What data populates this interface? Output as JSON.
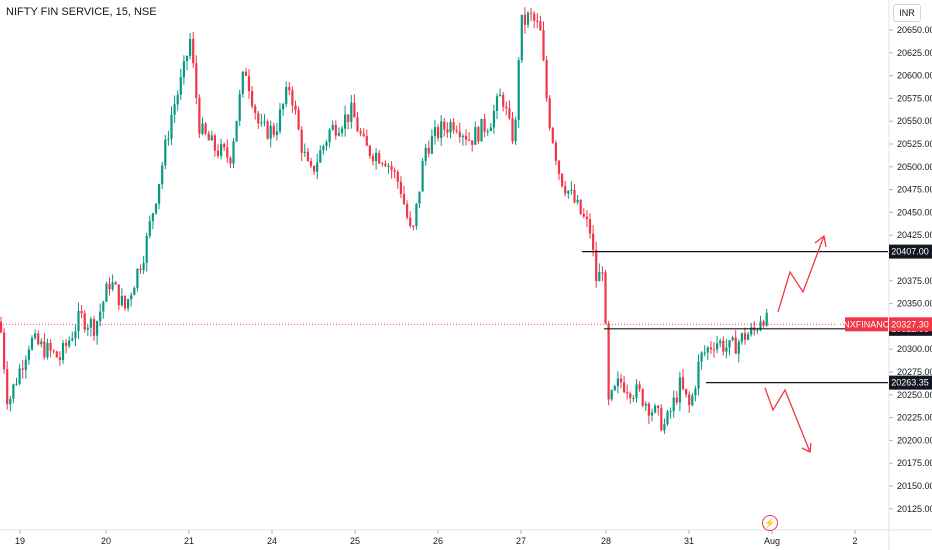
{
  "header": {
    "title": "NIFTY FIN SERVICE, 15, NSE",
    "currency": "INR"
  },
  "colors": {
    "up": "#089981",
    "down": "#f23645",
    "line": "#131722",
    "price_tag": "#f23645",
    "level_tag": "#131722"
  },
  "chart_data": {
    "type": "candlestick",
    "title": "NIFTY FIN SERVICE, 15, NSE",
    "ylim": [
      20110,
      20685
    ],
    "y_ticks": [
      "20650.00",
      "20625.00",
      "20600.00",
      "20575.00",
      "20550.00",
      "20525.00",
      "20500.00",
      "20475.00",
      "20450.00",
      "20425.00",
      "20375.00",
      "20350.00",
      "20300.00",
      "20275.00",
      "20250.00",
      "20225.00",
      "20200.00",
      "20175.00",
      "20150.00",
      "20125.00"
    ],
    "x_ticks": [
      "19",
      "20",
      "21",
      "24",
      "25",
      "26",
      "27",
      "28",
      "31",
      "Aug",
      "2"
    ],
    "price_label": {
      "symbol": "CNXFINANCE",
      "value": "20327.30"
    },
    "levels": [
      {
        "label": "20407.00",
        "value": 20407.0
      },
      {
        "label": "20322.35",
        "value": 20322.35
      },
      {
        "label": "20263.35",
        "value": 20263.35
      }
    ],
    "anchors": [
      {
        "x": 0,
        "p": 20330
      },
      {
        "x": 8,
        "p": 20240
      },
      {
        "x": 14,
        "p": 20260
      },
      {
        "x": 30,
        "p": 20310
      },
      {
        "x": 45,
        "p": 20300
      },
      {
        "x": 60,
        "p": 20290
      },
      {
        "x": 80,
        "p": 20335
      },
      {
        "x": 95,
        "p": 20325
      },
      {
        "x": 110,
        "p": 20375
      },
      {
        "x": 125,
        "p": 20345
      },
      {
        "x": 145,
        "p": 20410
      },
      {
        "x": 160,
        "p": 20490
      },
      {
        "x": 172,
        "p": 20560
      },
      {
        "x": 183,
        "p": 20600
      },
      {
        "x": 190,
        "p": 20640
      },
      {
        "x": 200,
        "p": 20540
      },
      {
        "x": 215,
        "p": 20520
      },
      {
        "x": 230,
        "p": 20510
      },
      {
        "x": 245,
        "p": 20610
      },
      {
        "x": 260,
        "p": 20540
      },
      {
        "x": 275,
        "p": 20540
      },
      {
        "x": 290,
        "p": 20590
      },
      {
        "x": 300,
        "p": 20530
      },
      {
        "x": 310,
        "p": 20490
      },
      {
        "x": 330,
        "p": 20540
      },
      {
        "x": 352,
        "p": 20560
      },
      {
        "x": 365,
        "p": 20520
      },
      {
        "x": 385,
        "p": 20510
      },
      {
        "x": 400,
        "p": 20480
      },
      {
        "x": 412,
        "p": 20420
      },
      {
        "x": 425,
        "p": 20520
      },
      {
        "x": 440,
        "p": 20540
      },
      {
        "x": 455,
        "p": 20550
      },
      {
        "x": 470,
        "p": 20530
      },
      {
        "x": 490,
        "p": 20550
      },
      {
        "x": 502,
        "p": 20580
      },
      {
        "x": 510,
        "p": 20540
      },
      {
        "x": 515,
        "p": 20530
      },
      {
        "x": 520,
        "p": 20655
      },
      {
        "x": 530,
        "p": 20665
      },
      {
        "x": 540,
        "p": 20650
      },
      {
        "x": 548,
        "p": 20560
      },
      {
        "x": 560,
        "p": 20490
      },
      {
        "x": 575,
        "p": 20460
      },
      {
        "x": 590,
        "p": 20430
      },
      {
        "x": 597,
        "p": 20370
      },
      {
        "x": 604,
        "p": 20400
      },
      {
        "x": 607,
        "p": 20235
      },
      {
        "x": 620,
        "p": 20265
      },
      {
        "x": 640,
        "p": 20250
      },
      {
        "x": 655,
        "p": 20230
      },
      {
        "x": 665,
        "p": 20215
      },
      {
        "x": 680,
        "p": 20260
      },
      {
        "x": 690,
        "p": 20235
      },
      {
        "x": 700,
        "p": 20290
      },
      {
        "x": 715,
        "p": 20310
      },
      {
        "x": 730,
        "p": 20300
      },
      {
        "x": 745,
        "p": 20315
      },
      {
        "x": 755,
        "p": 20320
      },
      {
        "x": 762,
        "p": 20340
      },
      {
        "x": 768,
        "p": 20327
      }
    ]
  }
}
